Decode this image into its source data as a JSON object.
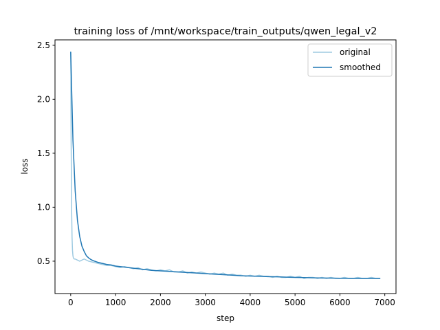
{
  "chart_data": {
    "type": "line",
    "title": "training loss of /mnt/workspace/train_outputs/qwen_legal_v2",
    "xlabel": "step",
    "ylabel": "loss",
    "xlim": [
      -350,
      7250
    ],
    "ylim": [
      0.2,
      2.55
    ],
    "x_ticks": [
      0,
      1000,
      2000,
      3000,
      4000,
      5000,
      6000,
      7000
    ],
    "x_tick_labels": [
      "0",
      "1000",
      "2000",
      "3000",
      "4000",
      "5000",
      "6000",
      "7000"
    ],
    "y_ticks": [
      0.5,
      1.0,
      1.5,
      2.0,
      2.5
    ],
    "y_tick_labels": [
      "0.5",
      "1.0",
      "1.5",
      "2.0",
      "2.5"
    ],
    "grid": false,
    "legend_position": "top-right",
    "series": [
      {
        "name": "original",
        "color": "#9ecae1",
        "x": [
          0,
          10,
          20,
          30,
          40,
          50,
          60,
          80,
          100,
          150,
          200,
          300,
          400,
          500,
          600,
          700,
          800,
          900,
          1000,
          1100,
          1200,
          1300,
          1400,
          1500,
          1600,
          1700,
          1800,
          1900,
          2000,
          2100,
          2200,
          2300,
          2400,
          2500,
          2600,
          2700,
          2800,
          2900,
          3000,
          3100,
          3200,
          3300,
          3400,
          3500,
          3600,
          3700,
          3800,
          3900,
          4000,
          4100,
          4200,
          4300,
          4400,
          4500,
          4600,
          4700,
          4800,
          4900,
          5000,
          5100,
          5200,
          5300,
          5400,
          5500,
          5600,
          5700,
          5800,
          5900,
          6000,
          6100,
          6200,
          6300,
          6400,
          6500,
          6600,
          6700,
          6800,
          6900
        ],
        "y": [
          2.44,
          1.6,
          1.0,
          0.72,
          0.6,
          0.55,
          0.53,
          0.52,
          0.52,
          0.51,
          0.5,
          0.52,
          0.5,
          0.49,
          0.48,
          0.47,
          0.46,
          0.46,
          0.45,
          0.44,
          0.45,
          0.44,
          0.43,
          0.44,
          0.42,
          0.43,
          0.42,
          0.41,
          0.42,
          0.41,
          0.42,
          0.4,
          0.4,
          0.41,
          0.39,
          0.4,
          0.39,
          0.4,
          0.39,
          0.38,
          0.39,
          0.38,
          0.39,
          0.37,
          0.38,
          0.37,
          0.37,
          0.36,
          0.37,
          0.36,
          0.37,
          0.36,
          0.36,
          0.35,
          0.36,
          0.35,
          0.35,
          0.36,
          0.35,
          0.36,
          0.34,
          0.35,
          0.35,
          0.34,
          0.35,
          0.34,
          0.35,
          0.34,
          0.34,
          0.35,
          0.34,
          0.34,
          0.35,
          0.34,
          0.34,
          0.35,
          0.34,
          0.34
        ]
      },
      {
        "name": "smoothed",
        "color": "#1f77b4",
        "x": [
          0,
          50,
          100,
          150,
          200,
          250,
          300,
          350,
          400,
          450,
          500,
          600,
          700,
          800,
          900,
          1000,
          1200,
          1400,
          1600,
          1800,
          2000,
          2200,
          2400,
          2600,
          2800,
          3000,
          3200,
          3400,
          3600,
          3800,
          4000,
          4200,
          4400,
          4600,
          4800,
          5000,
          5200,
          5400,
          5600,
          5800,
          6000,
          6200,
          6400,
          6600,
          6900
        ],
        "y": [
          2.44,
          1.62,
          1.15,
          0.88,
          0.73,
          0.64,
          0.59,
          0.55,
          0.53,
          0.515,
          0.505,
          0.49,
          0.48,
          0.47,
          0.465,
          0.455,
          0.445,
          0.435,
          0.425,
          0.415,
          0.41,
          0.405,
          0.4,
          0.395,
          0.39,
          0.385,
          0.38,
          0.375,
          0.37,
          0.365,
          0.362,
          0.36,
          0.357,
          0.355,
          0.352,
          0.35,
          0.348,
          0.346,
          0.344,
          0.343,
          0.342,
          0.341,
          0.34,
          0.34,
          0.34
        ]
      }
    ]
  }
}
